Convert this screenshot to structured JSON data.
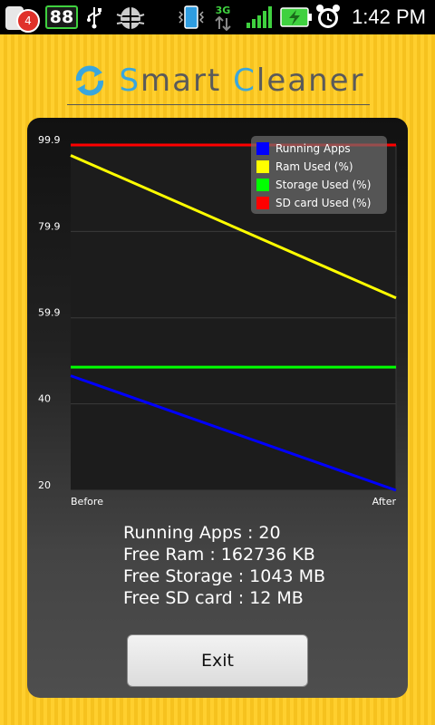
{
  "status_bar": {
    "notification_count": "4",
    "battery_level": "88",
    "network_type": "3G",
    "time": "1:42 PM",
    "icons": [
      "usb-icon",
      "android-debug-icon",
      "vibrate-icon",
      "data-transfer-icon",
      "signal-icon",
      "battery-charging-icon",
      "alarm-icon"
    ]
  },
  "header": {
    "title_s": "S",
    "title_mart": "mart ",
    "title_c": "C",
    "title_leaner": "leaner",
    "logo_icon": "refresh-icon"
  },
  "chart_data": {
    "type": "line",
    "categories": [
      "Before",
      "After"
    ],
    "ylim": [
      20,
      99.9
    ],
    "yticks": [
      "99.9",
      "79.9",
      "59.9",
      "40",
      "20"
    ],
    "series": [
      {
        "name": "Running Apps",
        "color": "#0000ff",
        "values": [
          46.5,
          20
        ]
      },
      {
        "name": "Ram Used (%)",
        "color": "#ffff00",
        "values": [
          97.5,
          64.5
        ]
      },
      {
        "name": "Storage Used (%)",
        "color": "#00ff00",
        "values": [
          48.5,
          48.5
        ]
      },
      {
        "name": "SD card Used (%)",
        "color": "#ff0000",
        "values": [
          99.9,
          99.9
        ]
      }
    ]
  },
  "stats": {
    "running_apps": "Running Apps : 20",
    "free_ram": "Free Ram : 162736 KB",
    "free_storage": "Free Storage : 1043 MB",
    "free_sd": "Free SD card : 12 MB"
  },
  "exit_button": {
    "label": "Exit"
  }
}
